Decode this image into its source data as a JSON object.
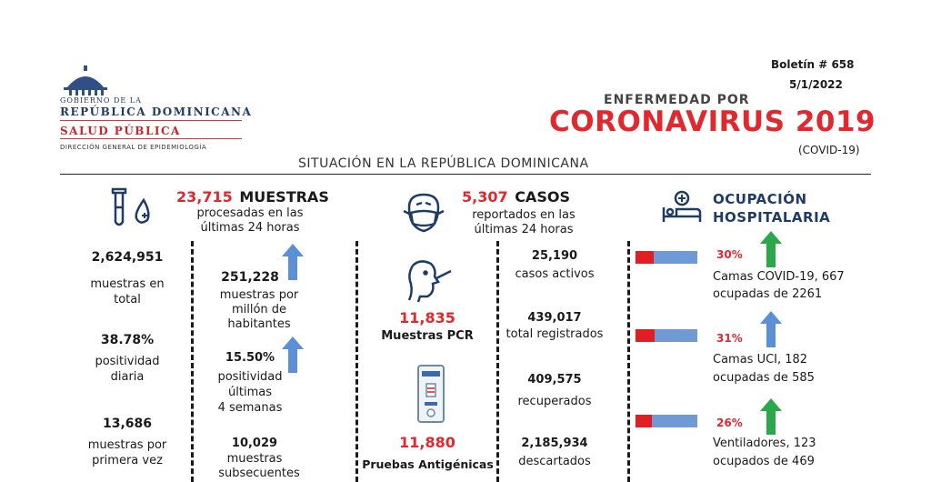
{
  "header": {
    "gov_line1": "GOBIERNO DE LA",
    "gov_line2": "REPÚBLICA DOMINICANA",
    "salud": "SALUD PÚBLICA",
    "direccion": "DIRECCIÓN GENERAL DE EPIDEMIOLOGÍA",
    "bulletin": "Boletín # 658",
    "date": "5/1/2022",
    "enfermedad": "ENFERMEDAD POR",
    "coronavirus": "CORONAVIRUS 2019",
    "covid": "(COVID-19)",
    "situacion": "SITUACIÓN EN LA REPÚBLICA DOMINICANA"
  },
  "muestras": {
    "headline_num": "23,715",
    "headline_label": "MUESTRAS",
    "sub1": "procesadas en las",
    "sub2": "últimas 24 horas",
    "left": [
      {
        "value": "2,624,951",
        "label1": "muestras en",
        "label2": "total"
      },
      {
        "value": "38.78%",
        "label1": "positividad",
        "label2": "diaria"
      },
      {
        "value": "13,686",
        "label1": "muestras por",
        "label2": "primera vez"
      }
    ],
    "right": [
      {
        "value": "251,228",
        "label1": "muestras por",
        "label2": "millón de",
        "label3": "habitantes"
      },
      {
        "value": "15.50%",
        "label1": "positividad",
        "label2": "últimas",
        "label3": "4 semanas"
      },
      {
        "value": "10,029",
        "label1": "muestras",
        "label2": "subsecuentes"
      }
    ]
  },
  "casos": {
    "headline_num": "5,307",
    "headline_label": "CASOS",
    "sub1": "reportados en las",
    "sub2": "últimas 24 horas",
    "pcr_value": "11,835",
    "pcr_label": "Muestras PCR",
    "antigen_value": "11,880",
    "antigen_label": "Pruebas Antigénicas",
    "stats": [
      {
        "value": "25,190",
        "label": "casos activos"
      },
      {
        "value": "439,017",
        "label": "total registrados"
      },
      {
        "value": "409,575",
        "label": "recuperados"
      },
      {
        "value": "2,185,934",
        "label": "descartados"
      }
    ]
  },
  "ocupacion": {
    "title1": "OCUPACIÓN",
    "title2": "HOSPITALARIA",
    "items": [
      {
        "pct": "30%",
        "fraction": 0.3,
        "trend": "up",
        "trend_color": "#2aa84a",
        "line1": "Camas COVID-19,  667",
        "line2": "ocupadas de 2261"
      },
      {
        "pct": "31%",
        "fraction": 0.31,
        "trend": "up",
        "trend_color": "#5b8fd6",
        "line1": "Camas UCI,  182",
        "line2": "ocupadas de 585"
      },
      {
        "pct": "26%",
        "fraction": 0.26,
        "trend": "up",
        "trend_color": "#2aa84a",
        "line1": "Ventiladores, 123",
        "line2": "ocupados de 469"
      }
    ]
  }
}
